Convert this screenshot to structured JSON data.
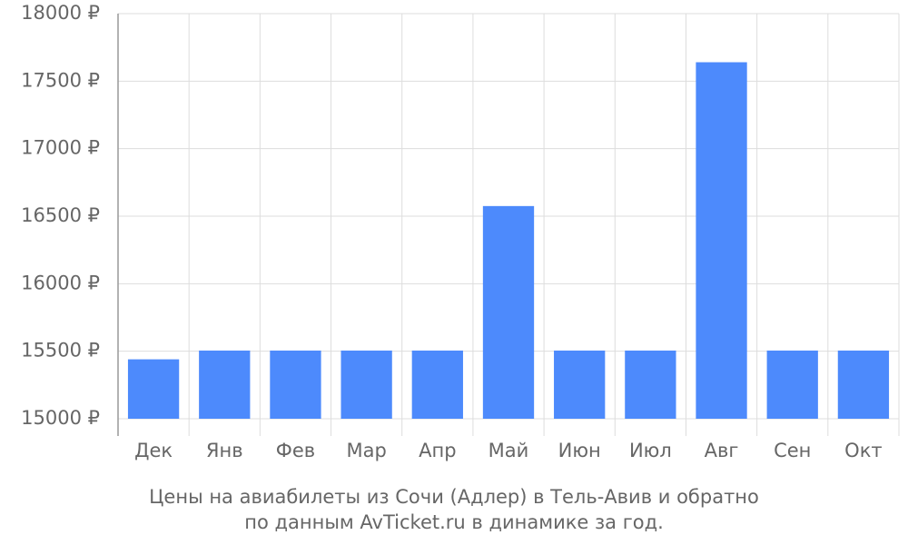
{
  "chart_data": {
    "type": "bar",
    "title_lines": [
      "Цены на авиабилеты из Сочи (Адлер) в Тель-Авив и обратно",
      "по данным AvTicket.ru в динамике за год."
    ],
    "categories": [
      "Дек",
      "Янв",
      "Фев",
      "Мар",
      "Апр",
      "Май",
      "Июн",
      "Июл",
      "Авг",
      "Сен",
      "Окт"
    ],
    "values": [
      15440,
      15505,
      15505,
      15505,
      15505,
      16575,
      15505,
      15505,
      17640,
      15505,
      15505
    ],
    "color": "#4d8afc",
    "ylim": [
      15000,
      18000
    ],
    "yticks": [
      {
        "value": 15000,
        "label": "15000 ₽"
      },
      {
        "value": 15500,
        "label": "15500 ₽"
      },
      {
        "value": 16000,
        "label": "16000 ₽"
      },
      {
        "value": 16500,
        "label": "16500 ₽"
      },
      {
        "value": 17000,
        "label": "17000 ₽"
      },
      {
        "value": 17500,
        "label": "17500 ₽"
      },
      {
        "value": 18000,
        "label": "18000 ₽"
      }
    ],
    "grid": true
  }
}
